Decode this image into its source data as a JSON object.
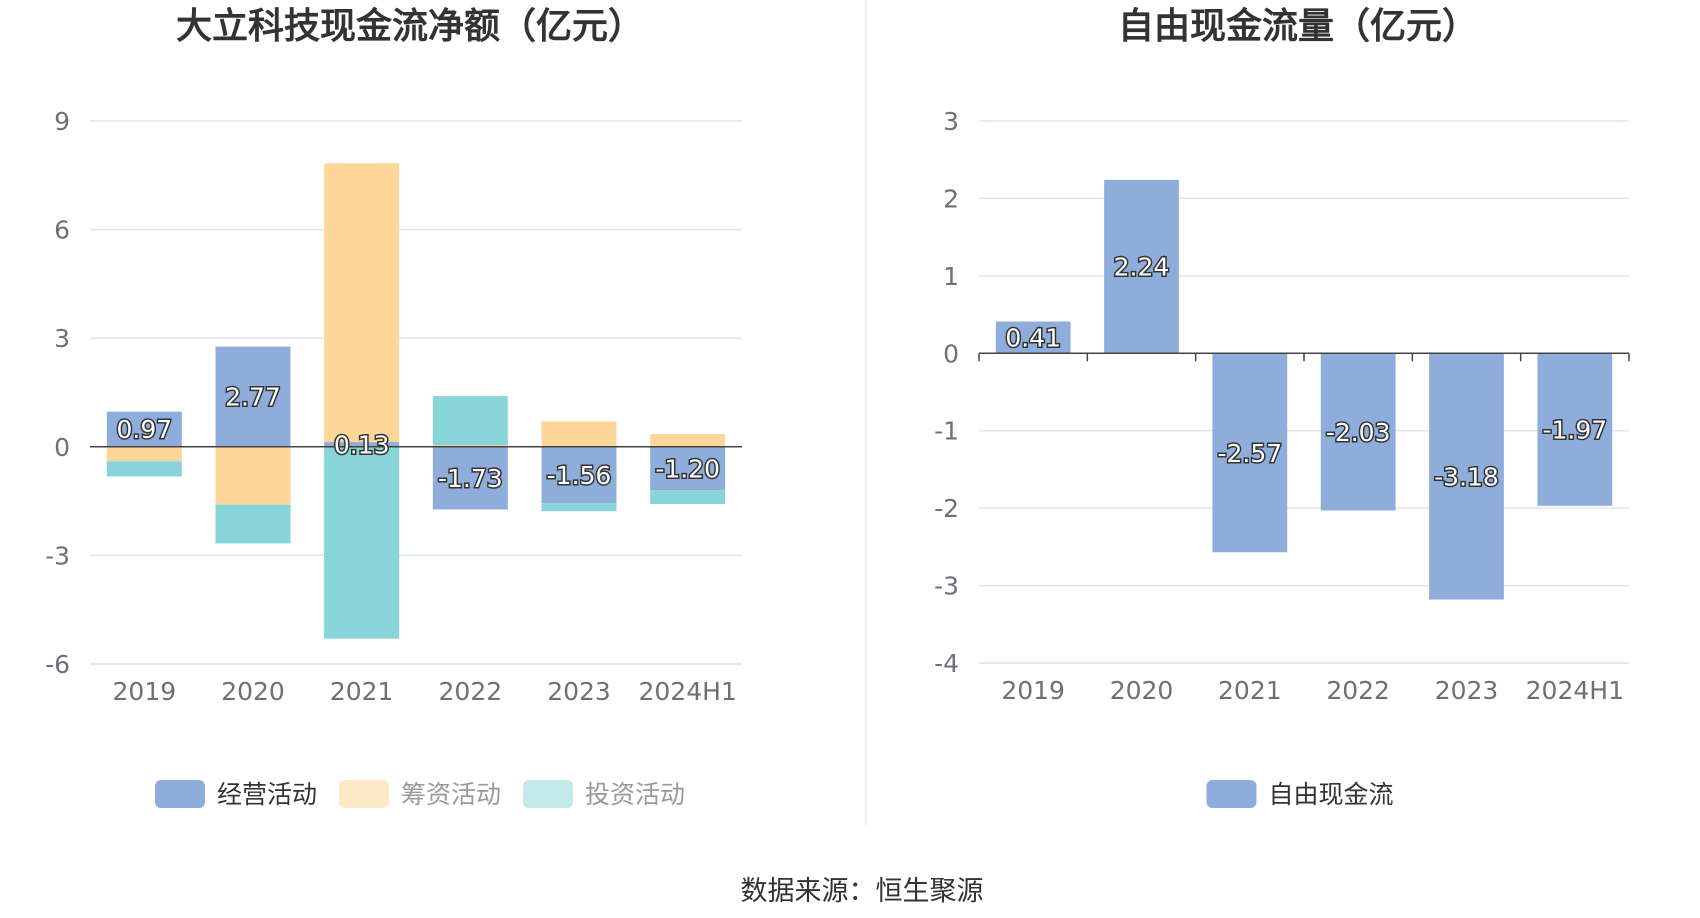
{
  "colors": {
    "operating": "#8eaddb",
    "financing": "#fed699",
    "investing": "#87d5d8",
    "financing_legend": "#fde8c6",
    "investing_legend": "#c3e9eb",
    "free_cash_flow": "#8eaddb",
    "grid": "#dde4f0",
    "axis": "#444444",
    "divider": "#eeeeee"
  },
  "source": "数据来源：恒生聚源",
  "chart_data": [
    {
      "type": "bar",
      "stacked": true,
      "title": "大立科技现金流净额（亿元）",
      "categories": [
        "2019",
        "2020",
        "2021",
        "2022",
        "2023",
        "2024H1"
      ],
      "ylim": [
        -6,
        9
      ],
      "yticks": [
        9,
        6,
        3,
        0,
        -3,
        -6
      ],
      "grid": true,
      "legend_position": "bottom",
      "series": [
        {
          "name": "经营活动",
          "values": [
            0.97,
            2.77,
            0.13,
            -1.73,
            -1.56,
            -1.2
          ]
        },
        {
          "name": "筹资活动",
          "values": [
            -0.4,
            -1.6,
            7.7,
            0.05,
            0.7,
            0.35
          ]
        },
        {
          "name": "投资活动",
          "values": [
            -0.42,
            -1.07,
            -5.3,
            1.35,
            -0.22,
            -0.38
          ]
        }
      ],
      "data_labels": [
        "0.97",
        "2.77",
        "0.13",
        "-1.73",
        "-1.56",
        "-1.20"
      ]
    },
    {
      "type": "bar",
      "title": "自由现金流量（亿元）",
      "categories": [
        "2019",
        "2020",
        "2021",
        "2022",
        "2023",
        "2024H1"
      ],
      "ylim": [
        -4,
        3
      ],
      "yticks": [
        3,
        2,
        1,
        0,
        -1,
        -2,
        -3,
        -4
      ],
      "grid": true,
      "legend_position": "bottom",
      "series": [
        {
          "name": "自由现金流",
          "values": [
            0.41,
            2.24,
            -2.57,
            -2.03,
            -3.18,
            -1.97
          ]
        }
      ],
      "data_labels": [
        "0.41",
        "2.24",
        "-2.57",
        "-2.03",
        "-3.18",
        "-1.97"
      ]
    }
  ]
}
